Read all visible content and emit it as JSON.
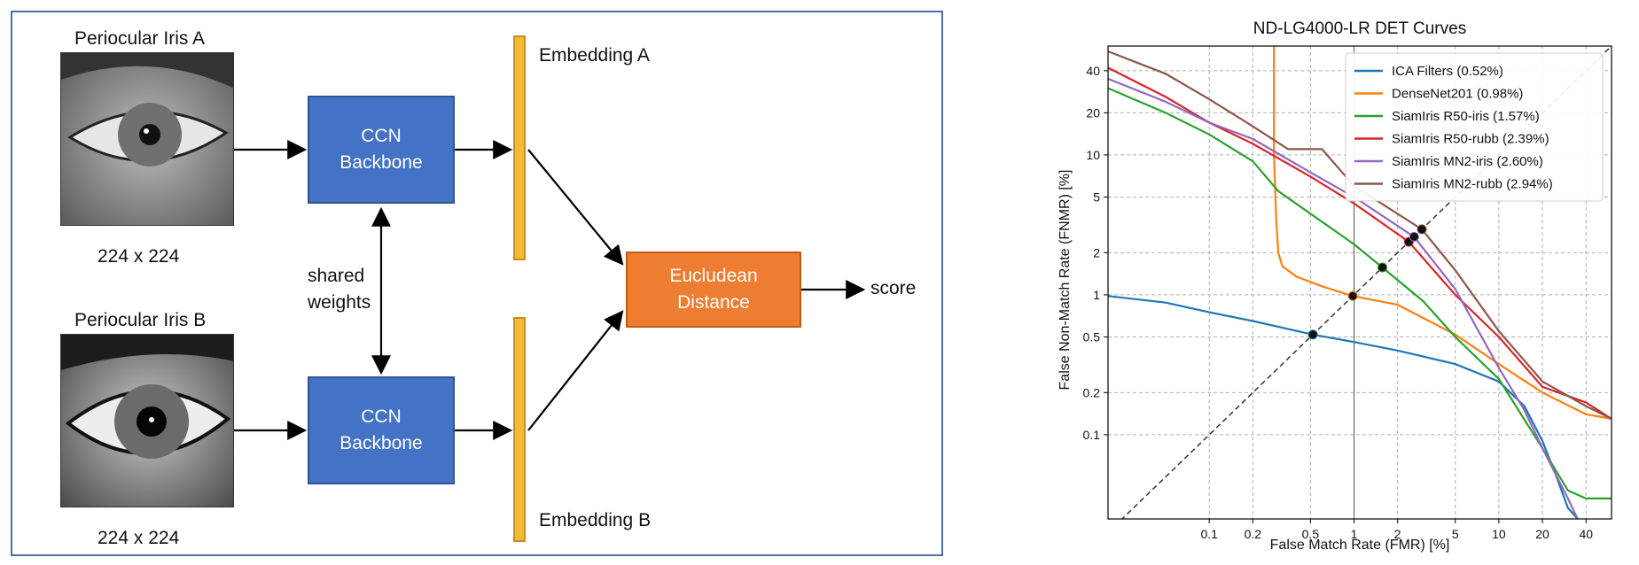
{
  "diagram": {
    "top_input": {
      "title": "Periocular Iris A",
      "size": "224 x 224"
    },
    "bottom_input": {
      "title": "Periocular Iris B",
      "size": "224 x 224"
    },
    "backbone_top": "CCN\nBackbone",
    "backbone_bottom": "CCN\nBackbone",
    "shared": "shared\nweights",
    "embedding_a": "Embedding A",
    "embedding_b": "Embedding B",
    "distance": "Eucludean\nDistance",
    "output": "score"
  },
  "chart_data": {
    "type": "line",
    "title": "ND-LG4000-LR DET Curves",
    "xlabel": "False Match Rate (FMR) [%]",
    "ylabel": "False Non-Match Rate (FNMR) [%]",
    "xscale": "log",
    "yscale": "log",
    "xlim": [
      0.02,
      60
    ],
    "ylim": [
      0.025,
      60
    ],
    "xticks": [
      0.1,
      0.2,
      0.5,
      1,
      2,
      5,
      10,
      20,
      40
    ],
    "xtick_labels": [
      "0.1",
      "0.2",
      "0.5",
      "1",
      "2",
      "5",
      "10",
      "20",
      "40"
    ],
    "yticks": [
      0.1,
      0.2,
      0.5,
      1,
      2,
      5,
      10,
      20,
      40
    ],
    "ytick_labels": [
      "0.1",
      "0.2",
      "0.5",
      "1",
      "2",
      "5",
      "10",
      "20",
      "40"
    ],
    "grid": true,
    "legend_position": "top-right",
    "diagonal": true,
    "series": [
      {
        "name": "ICA Filters (0.52%)",
        "color": "#1f77b4",
        "eer": 0.52,
        "x": [
          0.02,
          0.05,
          0.1,
          0.2,
          0.52,
          1,
          2,
          5,
          10,
          15,
          20,
          25,
          30,
          35
        ],
        "y": [
          0.98,
          0.88,
          0.75,
          0.65,
          0.52,
          0.46,
          0.4,
          0.32,
          0.24,
          0.16,
          0.09,
          0.05,
          0.03,
          0.025
        ]
      },
      {
        "name": "DenseNet201 (0.98%)",
        "color": "#ff7f0e",
        "eer": 0.98,
        "x": [
          0.28,
          0.28,
          0.29,
          0.3,
          0.32,
          0.4,
          0.6,
          0.98,
          2,
          5,
          10,
          20,
          40,
          60
        ],
        "y": [
          60,
          10,
          3.5,
          2.0,
          1.6,
          1.35,
          1.15,
          0.98,
          0.85,
          0.52,
          0.32,
          0.2,
          0.14,
          0.13
        ]
      },
      {
        "name": "SiamIris R50-iris (1.57%)",
        "color": "#2ca02c",
        "eer": 1.57,
        "x": [
          0.02,
          0.05,
          0.1,
          0.2,
          0.3,
          0.5,
          1,
          1.57,
          3,
          5,
          10,
          20,
          30,
          40,
          60
        ],
        "y": [
          30,
          20,
          14,
          9,
          5.5,
          3.8,
          2.3,
          1.57,
          0.9,
          0.5,
          0.25,
          0.08,
          0.04,
          0.035,
          0.035
        ]
      },
      {
        "name": "SiamIris R50-rubb (2.39%)",
        "color": "#d62728",
        "eer": 2.39,
        "x": [
          0.02,
          0.05,
          0.1,
          0.2,
          0.5,
          1,
          2.39,
          5,
          10,
          20,
          40,
          60
        ],
        "y": [
          42,
          26,
          17,
          12,
          7,
          4.5,
          2.39,
          1.0,
          0.5,
          0.22,
          0.17,
          0.13
        ]
      },
      {
        "name": "SiamIris MN2-iris (2.60%)",
        "color": "#9467bd",
        "eer": 2.6,
        "x": [
          0.02,
          0.05,
          0.1,
          0.2,
          0.5,
          1,
          2.6,
          5,
          10,
          15,
          20,
          30,
          35
        ],
        "y": [
          35,
          24,
          17,
          13,
          7.5,
          5,
          2.6,
          1.1,
          0.3,
          0.15,
          0.08,
          0.035,
          0.025
        ]
      },
      {
        "name": "SiamIris MN2-rubb (2.94%)",
        "color": "#8c564b",
        "eer": 2.94,
        "x": [
          0.02,
          0.05,
          0.1,
          0.2,
          0.35,
          0.6,
          1,
          2.94,
          5,
          10,
          20,
          40,
          60
        ],
        "y": [
          55,
          38,
          25,
          16,
          11,
          11,
          6,
          2.94,
          1.5,
          0.55,
          0.24,
          0.16,
          0.13
        ]
      }
    ]
  }
}
